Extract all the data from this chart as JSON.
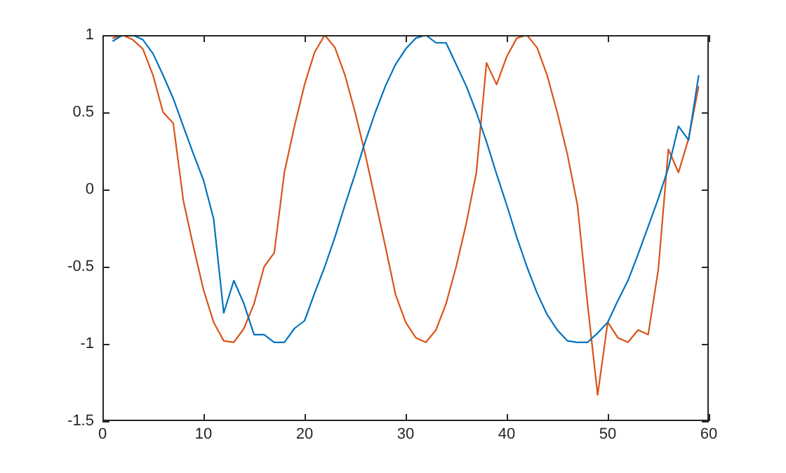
{
  "chart_data": {
    "type": "line",
    "x": [
      1,
      2,
      3,
      4,
      5,
      6,
      7,
      8,
      9,
      10,
      11,
      12,
      13,
      14,
      15,
      16,
      17,
      18,
      19,
      20,
      21,
      22,
      23,
      24,
      25,
      26,
      27,
      28,
      29,
      30,
      31,
      32,
      33,
      34,
      35,
      36,
      37,
      38,
      39,
      40,
      41,
      42,
      43,
      44,
      45,
      46,
      47,
      48,
      49,
      50,
      51,
      52,
      53,
      54,
      55,
      56,
      57,
      58,
      59
    ],
    "series": [
      {
        "color": "#0072bd",
        "values": [
          0.96,
          1.0,
          1.0,
          0.97,
          0.88,
          0.74,
          0.59,
          0.41,
          0.23,
          0.06,
          -0.19,
          -0.8,
          -0.59,
          -0.74,
          -0.94,
          -0.94,
          -0.99,
          -0.99,
          -0.9,
          -0.85,
          -0.67,
          -0.5,
          -0.31,
          -0.1,
          0.1,
          0.31,
          0.5,
          0.67,
          0.81,
          0.91,
          0.98,
          1.0,
          0.95,
          0.95,
          0.81,
          0.67,
          0.5,
          0.31,
          0.1,
          -0.1,
          -0.31,
          -0.5,
          -0.67,
          -0.81,
          -0.91,
          -0.98,
          -0.99,
          -0.99,
          -0.93,
          -0.86,
          -0.72,
          -0.59,
          -0.42,
          -0.24,
          -0.06,
          0.14,
          0.41,
          0.32,
          0.74
        ]
      },
      {
        "color": "#d95319",
        "values": [
          0.98,
          1.0,
          0.97,
          0.91,
          0.74,
          0.5,
          0.43,
          -0.07,
          -0.37,
          -0.65,
          -0.86,
          -0.98,
          -0.99,
          -0.9,
          -0.74,
          -0.5,
          -0.41,
          0.11,
          0.41,
          0.68,
          0.89,
          1.0,
          0.92,
          0.74,
          0.5,
          0.23,
          -0.07,
          -0.37,
          -0.68,
          -0.86,
          -0.96,
          -0.99,
          -0.91,
          -0.74,
          -0.5,
          -0.22,
          0.11,
          0.82,
          0.68,
          0.86,
          0.98,
          1.0,
          0.92,
          0.74,
          0.5,
          0.23,
          -0.1,
          -0.74,
          -1.33,
          -0.86,
          -0.96,
          -0.99,
          -0.91,
          -0.94,
          -0.52,
          0.26,
          0.11,
          0.33,
          0.67
        ]
      }
    ],
    "xlim": [
      0,
      60
    ],
    "xticks": [
      0,
      10,
      20,
      30,
      40,
      50,
      60
    ],
    "ylim": [
      -1.5,
      1
    ],
    "yticks": [
      -1.5,
      -1,
      -0.5,
      0,
      0.5,
      1
    ],
    "grid": false,
    "legend": false,
    "marker": "none",
    "line_style": "solid"
  }
}
